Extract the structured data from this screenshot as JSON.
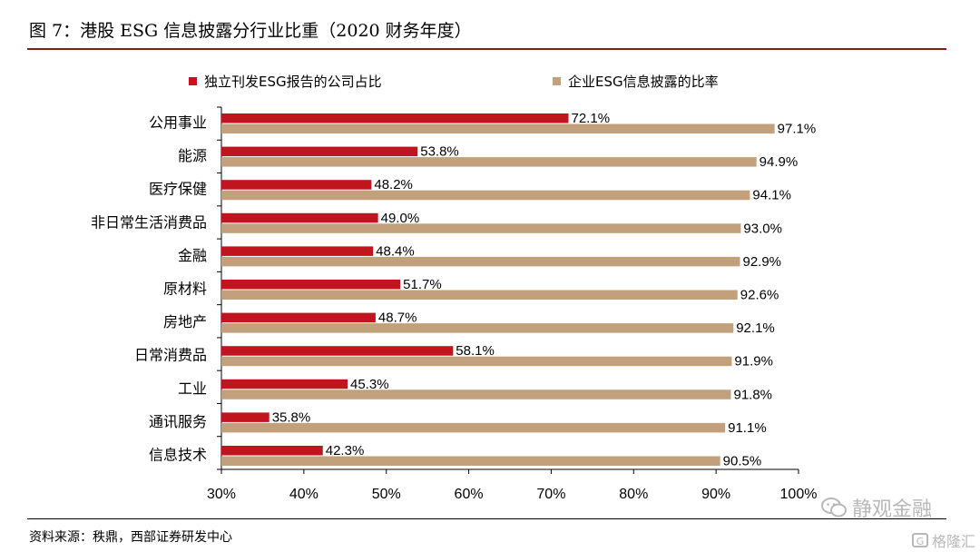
{
  "title": "图 7：港股 ESG 信息披露分行业比重（2020 财务年度）",
  "source": "资料来源：秩鼎，西部证券研发中心",
  "watermark": {
    "text": "静观金融",
    "sub_text": "格隆汇",
    "sub_icon_glyph": "G"
  },
  "colors": {
    "series_1": "#c0141e",
    "series_2": "#c2a07c",
    "title_rule": "#8b1a1a"
  },
  "chart_data": {
    "type": "bar",
    "orientation": "horizontal",
    "categories": [
      "公用事业",
      "能源",
      "医疗保健",
      "非日常生活消费品",
      "金融",
      "原材料",
      "房地产",
      "日常消费品",
      "工业",
      "通讯服务",
      "信息技术"
    ],
    "series": [
      {
        "name": "独立刊发ESG报告的公司占比",
        "values": [
          72.1,
          53.8,
          48.2,
          49.0,
          48.4,
          51.7,
          48.7,
          58.1,
          45.3,
          35.8,
          42.3
        ],
        "labels": [
          "72.1%",
          "53.8%",
          "48.2%",
          "49.0%",
          "48.4%",
          "51.7%",
          "48.7%",
          "58.1%",
          "45.3%",
          "35.8%",
          "42.3%"
        ]
      },
      {
        "name": "企业ESG信息披露的比率",
        "values": [
          97.1,
          94.9,
          94.1,
          93.0,
          92.9,
          92.6,
          92.1,
          91.9,
          91.8,
          91.1,
          90.5
        ],
        "labels": [
          "97.1%",
          "94.9%",
          "94.1%",
          "93.0%",
          "92.9%",
          "92.6%",
          "92.1%",
          "91.9%",
          "91.8%",
          "91.1%",
          "90.5%"
        ]
      }
    ],
    "x_ticks": [
      "30%",
      "40%",
      "50%",
      "60%",
      "70%",
      "80%",
      "90%",
      "100%"
    ],
    "xlim": [
      30,
      100
    ],
    "grid": false,
    "legend_position": "top"
  }
}
